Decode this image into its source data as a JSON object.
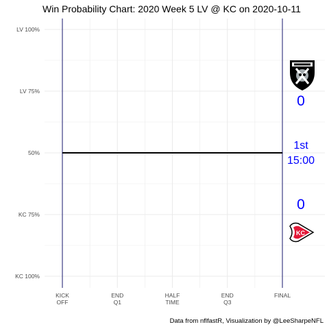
{
  "title": "Win Probability Chart: 2020 Week 5 LV @ KC on 2020-10-11",
  "caption": "Data from nflfastR, Visualization by @LeeSharpeNFL",
  "away": {
    "team": "LV",
    "score": "0",
    "logo": "raiders-logo"
  },
  "home": {
    "team": "KC",
    "score": "0",
    "logo": "chiefs-logo"
  },
  "game_status": {
    "quarter": "1st",
    "clock": "15:00"
  },
  "colors": {
    "line": "#000000",
    "boundary": "#191970",
    "score_text": "#0000ff",
    "grid": "#ebebeb"
  },
  "chart_data": {
    "type": "line",
    "title": "Win Probability Chart: 2020 Week 5 LV @ KC on 2020-10-11",
    "x_ticks": [
      {
        "value": 3600,
        "label": [
          "KICK",
          "OFF"
        ]
      },
      {
        "value": 2700,
        "label": [
          "END",
          "Q1"
        ]
      },
      {
        "value": 1800,
        "label": [
          "HALF",
          "TIME"
        ]
      },
      {
        "value": 900,
        "label": [
          "END",
          "Q3"
        ]
      },
      {
        "value": 0,
        "label": [
          "FINAL"
        ]
      }
    ],
    "y_ticks": [
      {
        "value": 1.0,
        "label": "LV 100%"
      },
      {
        "value": 0.75,
        "label": "LV 75%"
      },
      {
        "value": 0.5,
        "label": "50%"
      },
      {
        "value": 0.25,
        "label": "KC 75%"
      },
      {
        "value": 0.0,
        "label": "KC 100%"
      }
    ],
    "xlim": [
      3600,
      0
    ],
    "ylim": [
      0,
      1
    ],
    "grid": true,
    "series": [
      {
        "x": [
          3600,
          0
        ],
        "y": [
          0.5,
          0.5
        ]
      }
    ]
  }
}
